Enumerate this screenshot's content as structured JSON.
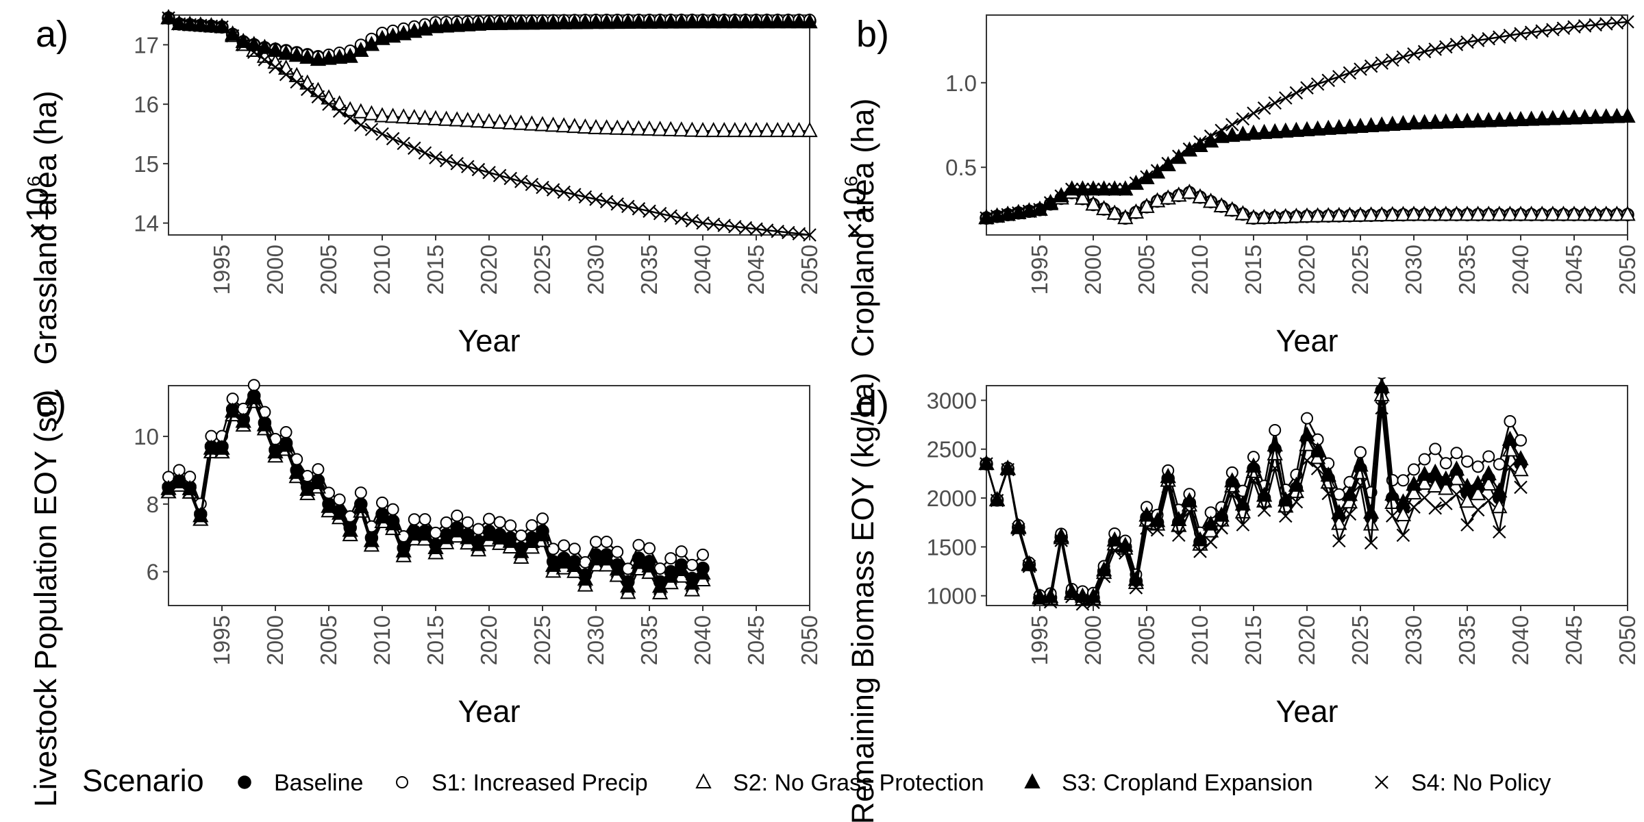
{
  "figure": {
    "legend_title": "Scenario",
    "legend": [
      {
        "label": "Baseline",
        "marker": "circle-filled"
      },
      {
        "label": "S1: Increased Precip",
        "marker": "circle-open"
      },
      {
        "label": "S2: No Grass Protection",
        "marker": "triangle-open"
      },
      {
        "label": "S3: Cropland Expansion",
        "marker": "triangle-filled"
      },
      {
        "label": "S4: No Policy",
        "marker": "cross"
      }
    ],
    "colors": {
      "line": "#000000",
      "axis": "#333333",
      "tick_text": "#4d4d4d",
      "background": "#ffffff"
    }
  },
  "chart_data": [
    {
      "panel": "a)",
      "type": "line",
      "xlabel": "Year",
      "ylabel": "Grassland area (ha)",
      "yscale_label": "×10⁶",
      "x_range": [
        1990,
        2050
      ],
      "xticks": [
        1995,
        2000,
        2005,
        2010,
        2015,
        2020,
        2025,
        2030,
        2035,
        2040,
        2045,
        2050
      ],
      "ylim": [
        13.8,
        17.5
      ],
      "yticks": [
        14,
        15,
        16,
        17
      ],
      "series": [
        {
          "name": "Baseline",
          "marker": "circle-filled",
          "anchors": [
            [
              1990,
              17.45
            ],
            [
              1991,
              17.35
            ],
            [
              1995,
              17.3
            ],
            [
              1997,
              17.05
            ],
            [
              1999,
              16.95
            ],
            [
              2001,
              16.9
            ],
            [
              2004,
              16.8
            ],
            [
              2007,
              16.85
            ],
            [
              2010,
              17.15
            ],
            [
              2015,
              17.35
            ],
            [
              2020,
              17.38
            ],
            [
              2030,
              17.4
            ],
            [
              2040,
              17.4
            ],
            [
              2050,
              17.4
            ]
          ]
        },
        {
          "name": "S1: Increased Precip",
          "marker": "circle-open",
          "anchors": [
            [
              1990,
              17.45
            ],
            [
              1991,
              17.35
            ],
            [
              1995,
              17.3
            ],
            [
              1997,
              17.05
            ],
            [
              1999,
              16.95
            ],
            [
              2001,
              16.9
            ],
            [
              2004,
              16.8
            ],
            [
              2007,
              16.9
            ],
            [
              2010,
              17.2
            ],
            [
              2015,
              17.38
            ],
            [
              2020,
              17.4
            ],
            [
              2030,
              17.42
            ],
            [
              2040,
              17.42
            ],
            [
              2050,
              17.42
            ]
          ]
        },
        {
          "name": "S2: No Grass Protection",
          "marker": "triangle-open",
          "anchors": [
            [
              1990,
              17.45
            ],
            [
              1991,
              17.35
            ],
            [
              1995,
              17.3
            ],
            [
              1997,
              17.0
            ],
            [
              1999,
              16.8
            ],
            [
              2001,
              16.6
            ],
            [
              2003,
              16.35
            ],
            [
              2005,
              16.1
            ],
            [
              2007,
              15.9
            ],
            [
              2010,
              15.8
            ],
            [
              2015,
              15.75
            ],
            [
              2020,
              15.7
            ],
            [
              2030,
              15.6
            ],
            [
              2040,
              15.55
            ],
            [
              2050,
              15.55
            ]
          ]
        },
        {
          "name": "S3: Cropland Expansion",
          "marker": "triangle-filled",
          "anchors": [
            [
              1990,
              17.45
            ],
            [
              1991,
              17.35
            ],
            [
              1995,
              17.3
            ],
            [
              1997,
              17.05
            ],
            [
              1999,
              16.95
            ],
            [
              2001,
              16.85
            ],
            [
              2004,
              16.75
            ],
            [
              2007,
              16.8
            ],
            [
              2010,
              17.1
            ],
            [
              2015,
              17.3
            ],
            [
              2020,
              17.35
            ],
            [
              2030,
              17.37
            ],
            [
              2040,
              17.38
            ],
            [
              2050,
              17.38
            ]
          ]
        },
        {
          "name": "S4: No Policy",
          "marker": "cross",
          "anchors": [
            [
              1990,
              17.45
            ],
            [
              1991,
              17.35
            ],
            [
              1995,
              17.3
            ],
            [
              1997,
              17.0
            ],
            [
              1999,
              16.75
            ],
            [
              2001,
              16.5
            ],
            [
              2003,
              16.25
            ],
            [
              2005,
              16.0
            ],
            [
              2008,
              15.65
            ],
            [
              2010,
              15.5
            ],
            [
              2015,
              15.1
            ],
            [
              2020,
              14.85
            ],
            [
              2025,
              14.6
            ],
            [
              2030,
              14.4
            ],
            [
              2035,
              14.2
            ],
            [
              2040,
              14.0
            ],
            [
              2045,
              13.9
            ],
            [
              2050,
              13.8
            ]
          ]
        }
      ]
    },
    {
      "panel": "b)",
      "type": "line",
      "xlabel": "Year",
      "ylabel": "Cropland area (ha)",
      "yscale_label": "×10⁶",
      "x_range": [
        1990,
        2050
      ],
      "xticks": [
        1995,
        2000,
        2005,
        2010,
        2015,
        2020,
        2025,
        2030,
        2035,
        2040,
        2045,
        2050
      ],
      "ylim": [
        0.1,
        1.4
      ],
      "yticks": [
        0.5,
        1.0
      ],
      "series": [
        {
          "name": "Baseline",
          "marker": "circle-filled",
          "anchors": [
            [
              1990,
              0.2
            ],
            [
              1995,
              0.25
            ],
            [
              1998,
              0.35
            ],
            [
              2000,
              0.28
            ],
            [
              2003,
              0.2
            ],
            [
              2006,
              0.3
            ],
            [
              2009,
              0.35
            ],
            [
              2012,
              0.27
            ],
            [
              2015,
              0.2
            ],
            [
              2020,
              0.21
            ],
            [
              2030,
              0.22
            ],
            [
              2040,
              0.22
            ],
            [
              2050,
              0.22
            ]
          ]
        },
        {
          "name": "S1: Increased Precip",
          "marker": "circle-open",
          "anchors": [
            [
              1990,
              0.2
            ],
            [
              1995,
              0.25
            ],
            [
              1998,
              0.35
            ],
            [
              2000,
              0.28
            ],
            [
              2003,
              0.2
            ],
            [
              2006,
              0.3
            ],
            [
              2009,
              0.35
            ],
            [
              2012,
              0.27
            ],
            [
              2015,
              0.2
            ],
            [
              2020,
              0.21
            ],
            [
              2030,
              0.22
            ],
            [
              2040,
              0.22
            ],
            [
              2050,
              0.22
            ]
          ]
        },
        {
          "name": "S2: No Grass Protection",
          "marker": "triangle-open",
          "anchors": [
            [
              1990,
              0.2
            ],
            [
              1995,
              0.25
            ],
            [
              1998,
              0.35
            ],
            [
              2000,
              0.28
            ],
            [
              2003,
              0.2
            ],
            [
              2006,
              0.3
            ],
            [
              2009,
              0.35
            ],
            [
              2012,
              0.27
            ],
            [
              2015,
              0.2
            ],
            [
              2020,
              0.21
            ],
            [
              2030,
              0.22
            ],
            [
              2040,
              0.22
            ],
            [
              2050,
              0.22
            ]
          ]
        },
        {
          "name": "S3: Cropland Expansion",
          "marker": "triangle-filled",
          "anchors": [
            [
              1990,
              0.2
            ],
            [
              1995,
              0.25
            ],
            [
              1998,
              0.37
            ],
            [
              2000,
              0.37
            ],
            [
              2003,
              0.37
            ],
            [
              2006,
              0.47
            ],
            [
              2009,
              0.6
            ],
            [
              2012,
              0.68
            ],
            [
              2015,
              0.7
            ],
            [
              2020,
              0.72
            ],
            [
              2030,
              0.76
            ],
            [
              2040,
              0.78
            ],
            [
              2050,
              0.8
            ]
          ]
        },
        {
          "name": "S4: No Policy",
          "marker": "cross",
          "anchors": [
            [
              1990,
              0.2
            ],
            [
              1995,
              0.25
            ],
            [
              1998,
              0.37
            ],
            [
              2000,
              0.37
            ],
            [
              2003,
              0.37
            ],
            [
              2006,
              0.48
            ],
            [
              2010,
              0.65
            ],
            [
              2015,
              0.82
            ],
            [
              2020,
              0.97
            ],
            [
              2025,
              1.08
            ],
            [
              2030,
              1.17
            ],
            [
              2035,
              1.24
            ],
            [
              2040,
              1.29
            ],
            [
              2045,
              1.33
            ],
            [
              2050,
              1.36
            ]
          ]
        }
      ]
    },
    {
      "panel": "c)",
      "type": "line",
      "xlabel": "Year",
      "ylabel": "Livestock Population EOY (su)",
      "x_range": [
        1990,
        2050
      ],
      "xticks": [
        1995,
        2000,
        2005,
        2010,
        2015,
        2020,
        2025,
        2030,
        2035,
        2040,
        2045,
        2050
      ],
      "ylim": [
        5.0,
        11.5
      ],
      "yticks": [
        6,
        8,
        10
      ],
      "baseline": [
        8.5,
        8.7,
        8.5,
        7.7,
        9.7,
        9.7,
        10.8,
        10.5,
        11.2,
        10.4,
        9.6,
        9.8,
        9.0,
        8.5,
        8.7,
        8.0,
        7.8,
        7.3,
        8.0,
        7.0,
        7.7,
        7.5,
        6.7,
        7.2,
        7.2,
        6.8,
        7.1,
        7.3,
        7.1,
        6.9,
        7.2,
        7.1,
        7.0,
        6.7,
        7.0,
        7.2,
        6.3,
        6.4,
        6.3,
        5.9,
        6.5,
        6.5,
        6.2,
        5.7,
        6.4,
        6.3,
        5.7,
        6.0,
        6.2,
        5.8,
        6.1
      ],
      "series": [
        {
          "name": "Baseline",
          "marker": "circle-filled",
          "offset_start": 0.0,
          "offset_end": 0.0
        },
        {
          "name": "S1: Increased Precip",
          "marker": "circle-open",
          "offset_start": 0.3,
          "offset_end": 0.4
        },
        {
          "name": "S2: No Grass Protection",
          "marker": "triangle-open",
          "offset_start": -0.15,
          "offset_end": -0.35
        },
        {
          "name": "S3: Cropland Expansion",
          "marker": "triangle-filled",
          "offset_start": -0.05,
          "offset_end": -0.15
        },
        {
          "name": "S4: No Policy",
          "marker": "cross",
          "offset_start": -0.1,
          "offset_end": -0.2
        }
      ]
    },
    {
      "panel": "d)",
      "type": "line",
      "xlabel": "Year",
      "ylabel": "Remaining Biomass EOY (kg/ha)",
      "x_range": [
        1990,
        2050
      ],
      "xticks": [
        1995,
        2000,
        2005,
        2010,
        2015,
        2020,
        2025,
        2030,
        2035,
        2040,
        2045,
        2050
      ],
      "ylim": [
        900,
        3150
      ],
      "yticks": [
        1000,
        1500,
        2000,
        2500,
        3000
      ],
      "baseline": [
        2350,
        1980,
        2300,
        1700,
        1320,
        980,
        980,
        1600,
        1030,
        980,
        980,
        1250,
        1550,
        1500,
        1150,
        1800,
        1750,
        2200,
        1750,
        1950,
        1550,
        1700,
        1800,
        2150,
        1900,
        2300,
        2000,
        2500,
        1950,
        2100,
        2600,
        2450,
        2200,
        1800,
        2000,
        2300,
        1800,
        3100,
        2000,
        1900,
        2100,
        2200,
        2200,
        2150,
        2250,
        2050,
        2100,
        2200,
        2000,
        2550,
        2350
      ],
      "series": [
        {
          "name": "Baseline",
          "marker": "circle-filled",
          "spread_start": 0,
          "spread_end": 0
        },
        {
          "name": "S1: Increased Precip",
          "marker": "circle-open",
          "spread_start": 0,
          "spread_end": 300
        },
        {
          "name": "S2: No Grass Protection",
          "marker": "triangle-open",
          "spread_start": 0,
          "spread_end": -80
        },
        {
          "name": "S3: Cropland Expansion",
          "marker": "triangle-filled",
          "spread_start": 0,
          "spread_end": 60
        },
        {
          "name": "S4: No Policy",
          "marker": "cross",
          "spread_start": 0,
          "spread_end": -300
        }
      ]
    }
  ]
}
